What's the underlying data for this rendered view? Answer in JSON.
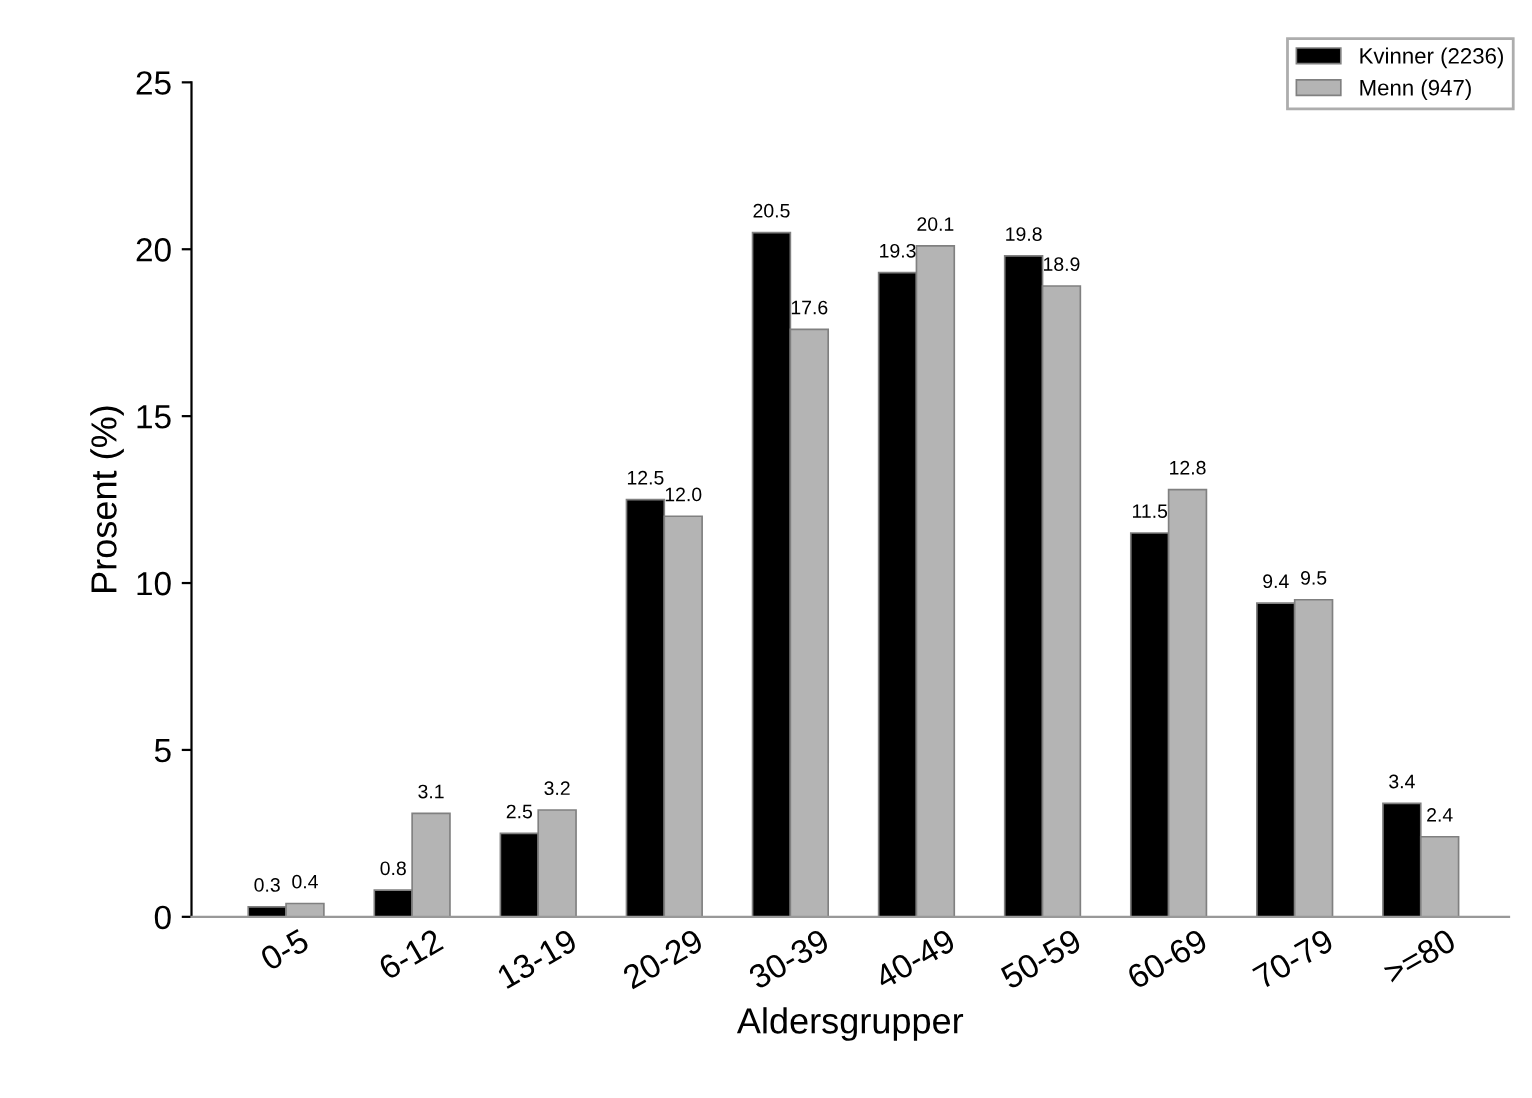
{
  "chart_data": {
    "type": "bar",
    "xlabel": "Aldersgrupper",
    "ylabel": "Prosent (%)",
    "categories": [
      "0-5",
      "6-12",
      "13-19",
      "20-29",
      "30-39",
      "40-49",
      "50-59",
      "60-69",
      "70-79",
      ">=80"
    ],
    "series": [
      {
        "name": "Kvinner (2236)",
        "color": "#000000",
        "values": [
          0.3,
          0.8,
          2.5,
          12.5,
          20.5,
          19.3,
          19.8,
          11.5,
          9.4,
          3.4
        ],
        "value_labels": [
          "0.3",
          "0.8",
          "2.5",
          "12.5",
          "20.5",
          "19.3",
          "19.8",
          "11.5",
          "9.4",
          "3.4"
        ]
      },
      {
        "name": "Menn (947)",
        "color": "#b4b4b4",
        "values": [
          0.4,
          3.1,
          3.2,
          12.0,
          17.6,
          20.1,
          18.9,
          12.8,
          9.5,
          2.4
        ],
        "value_labels": [
          "0.4",
          "3.1",
          "3.2",
          "12.0",
          "17.6",
          "20.1",
          "18.9",
          "12.8",
          "9.5",
          "2.4"
        ]
      }
    ],
    "ylim": [
      0,
      25
    ],
    "yticks": [
      0,
      5,
      10,
      15,
      20,
      25
    ],
    "grid": false,
    "legend": "top right"
  }
}
